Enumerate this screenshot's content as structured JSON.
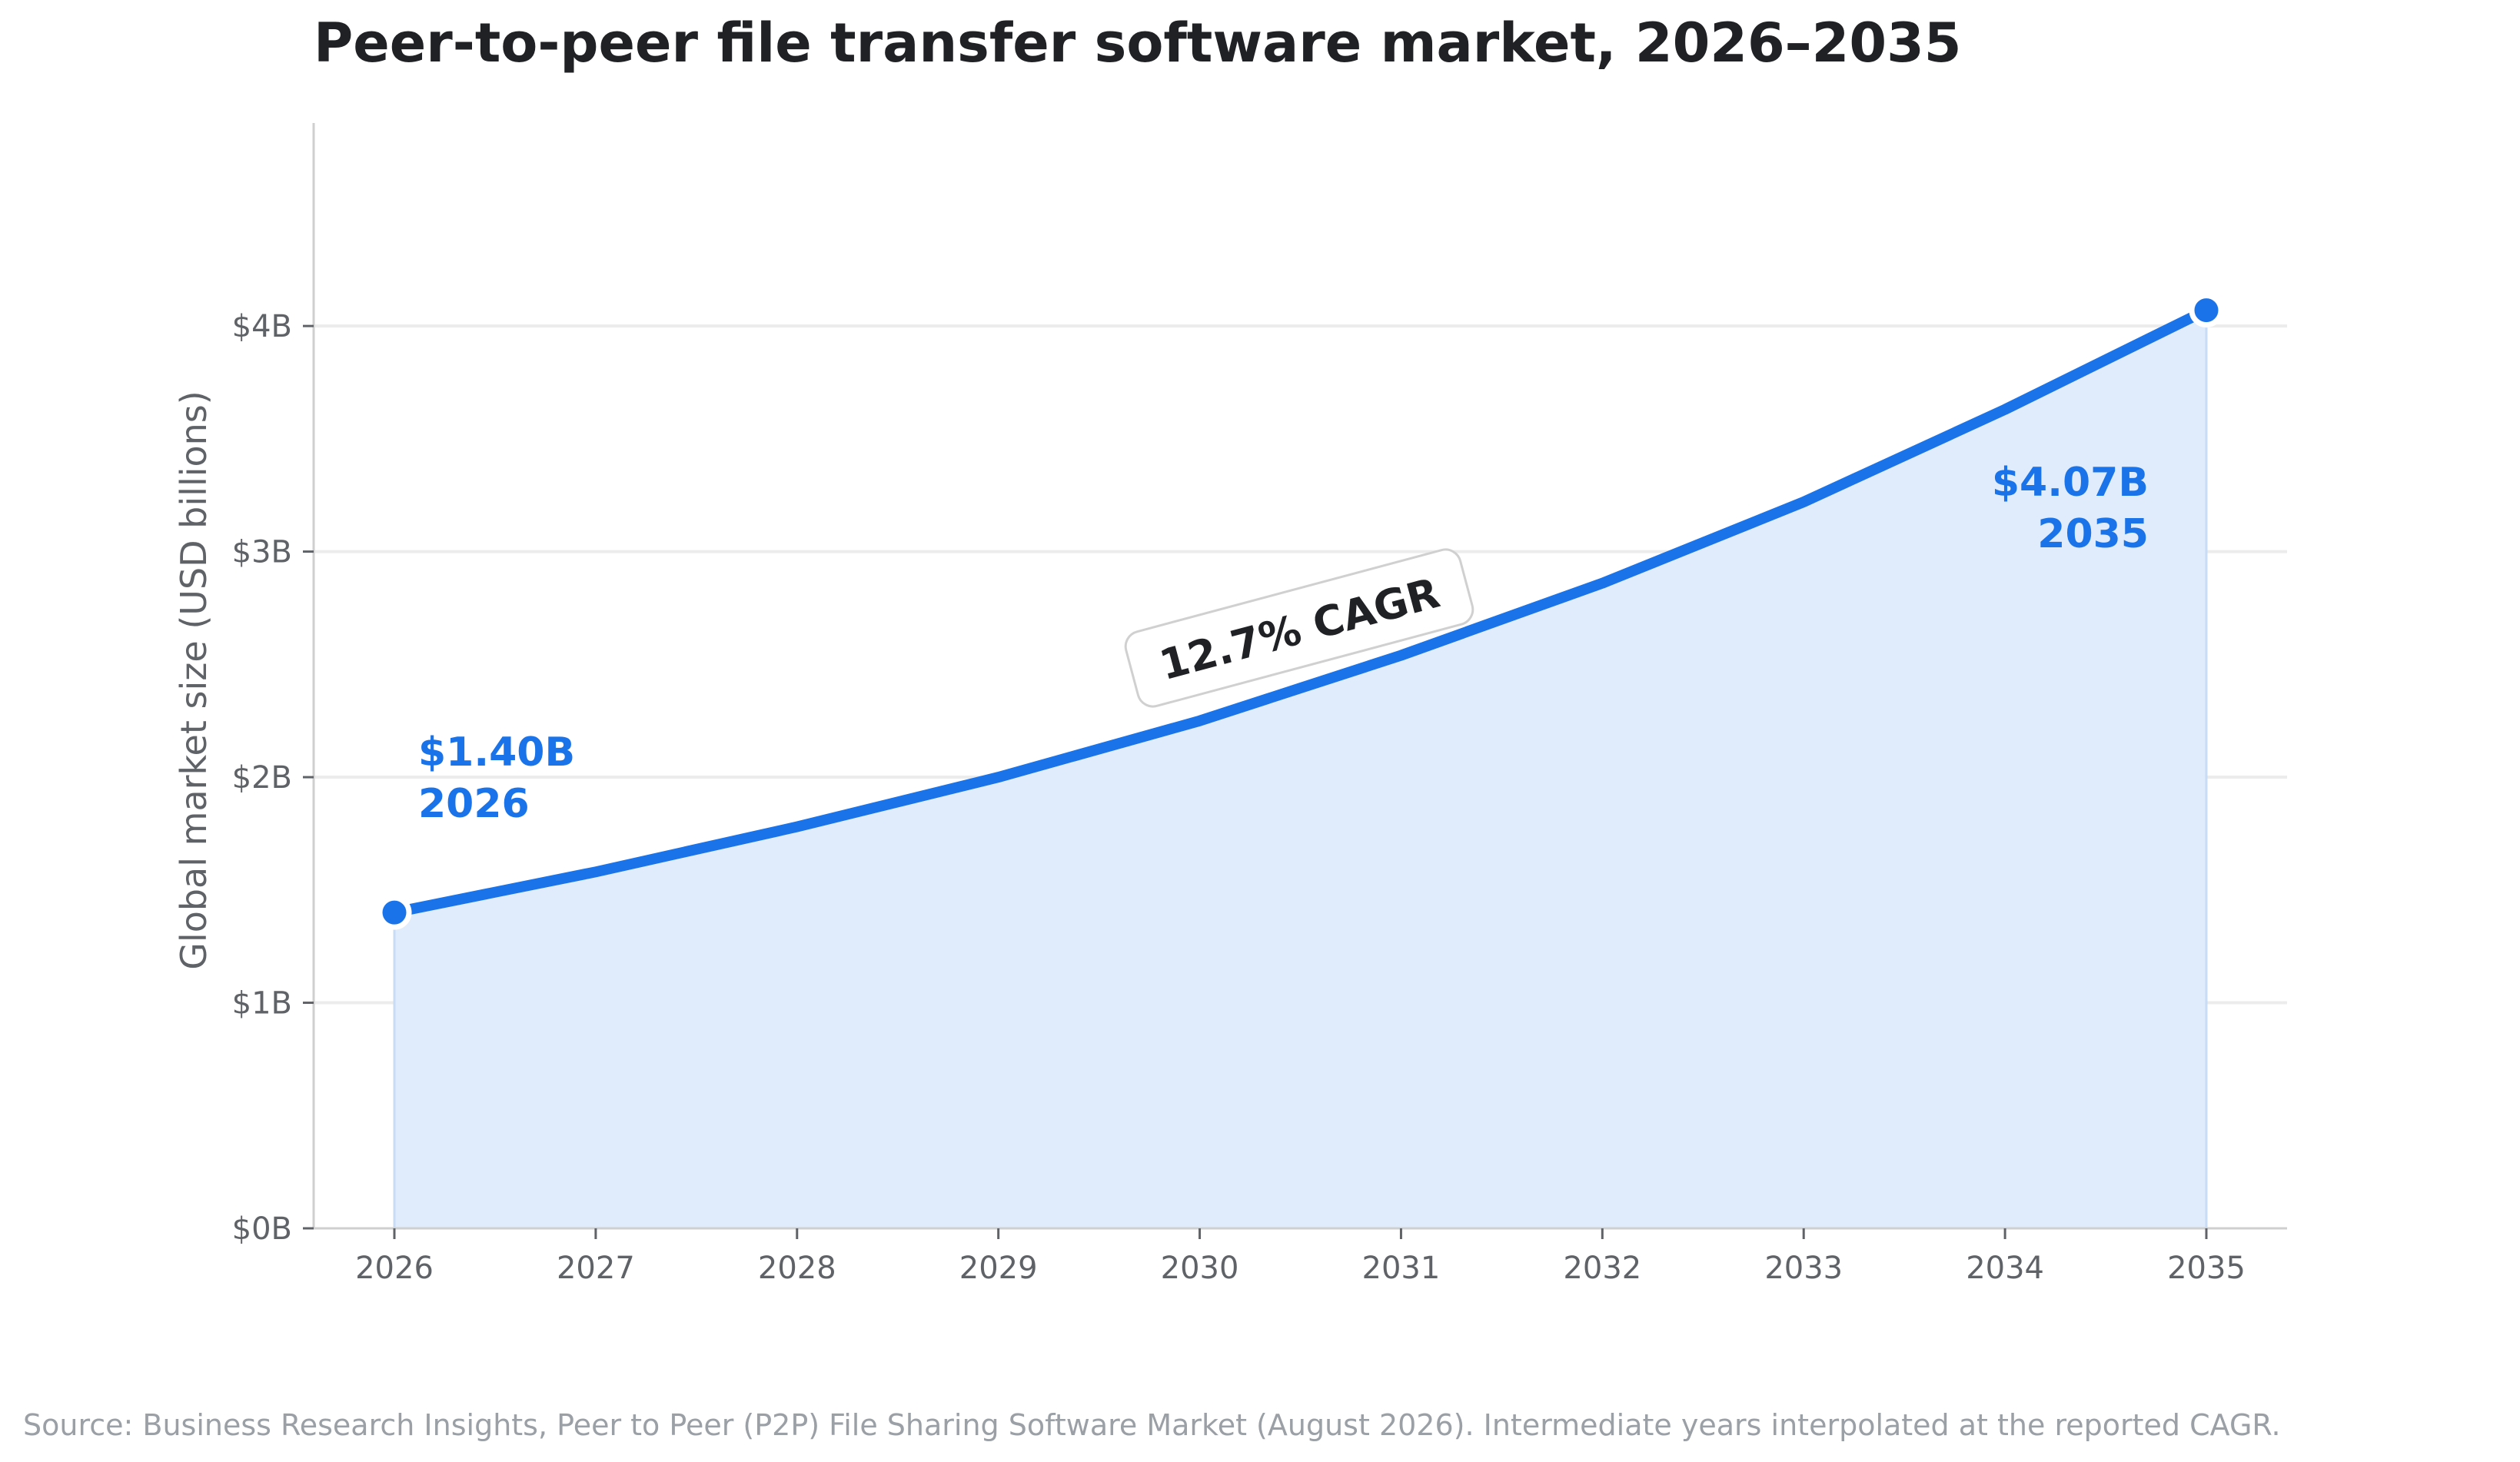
{
  "chart_data": {
    "type": "area",
    "title": "Peer-to-peer file transfer software market, 2026–2035",
    "xlabel": "",
    "ylabel": "Global market size (USD billions)",
    "x": [
      "2026",
      "2027",
      "2028",
      "2029",
      "2030",
      "2031",
      "2032",
      "2033",
      "2034",
      "2035"
    ],
    "values": [
      1.4,
      1.58,
      1.78,
      2.0,
      2.25,
      2.54,
      2.86,
      3.22,
      3.63,
      4.07
    ],
    "ylim": [
      0,
      4.9
    ],
    "yticks": [
      0,
      1,
      2,
      3,
      4
    ],
    "ytick_labels": [
      "$0B",
      "$1B",
      "$2B",
      "$3B",
      "$4B"
    ],
    "grid": "horizontal",
    "legend": "none",
    "annotations": {
      "start_value": "$1.40B",
      "start_year": "2026",
      "end_value": "$4.07B",
      "end_year": "2035",
      "cagr": "12.7% CAGR"
    },
    "source": "Source: Business Research Insights, Peer to Peer (P2P) File Sharing Software Market (August 2026). Intermediate years interpolated at the reported CAGR.",
    "colors": {
      "line": "#1a73e8",
      "fill": "#e0ecfb",
      "grid": "#ececec",
      "axis": "#cfcfcf",
      "text": "#5f6368",
      "title": "#202124",
      "source": "#9aa0a6"
    }
  }
}
